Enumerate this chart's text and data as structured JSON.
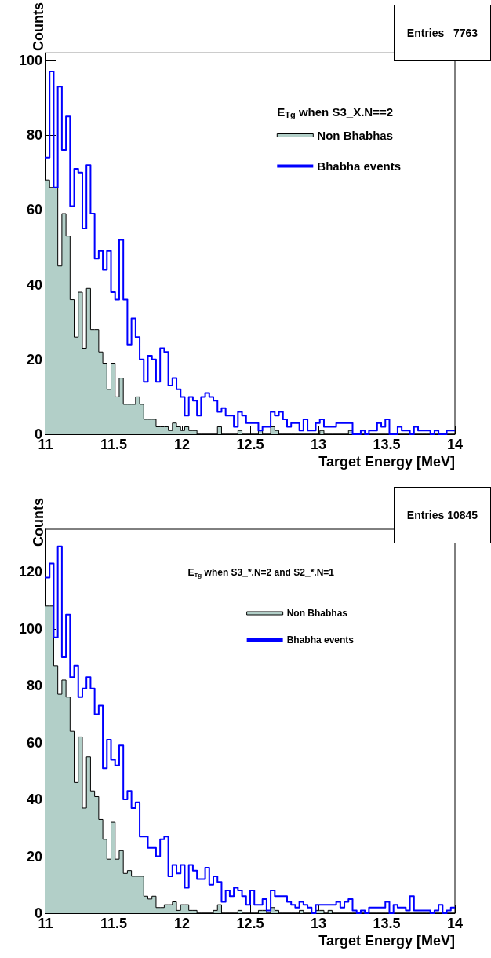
{
  "chart_data": [
    {
      "type": "histogram",
      "xlabel": "Target Energy [MeV]",
      "ylabel": "Counts",
      "legend_title": "E$_{Tg}$ when S3_X.N==2",
      "legend": "top right",
      "annotations": [
        "Entries   7763"
      ],
      "bins": [
        11,
        11.03,
        11.06,
        11.09,
        11.12,
        11.15,
        11.18,
        11.21,
        11.24,
        11.27,
        11.3,
        11.33,
        11.36,
        11.39,
        11.42,
        11.45,
        11.48,
        11.51,
        11.54,
        11.57,
        11.6,
        11.63,
        11.66,
        11.69,
        11.72,
        11.75,
        11.78,
        11.81,
        11.84,
        11.87,
        11.9,
        11.93,
        11.96,
        11.99,
        12.02,
        12.05,
        12.08,
        12.11,
        12.14,
        12.17,
        12.2,
        12.23,
        12.26,
        12.29,
        12.32,
        12.35,
        12.38,
        12.41,
        12.44,
        12.47,
        12.5,
        12.53,
        12.56,
        12.59,
        12.62,
        12.65,
        12.68,
        12.71,
        12.74,
        12.77,
        12.8,
        12.83,
        12.86,
        12.89,
        12.92,
        12.95,
        12.98,
        13.01,
        13.04,
        13.07,
        13.1,
        13.13,
        13.16,
        13.19,
        13.22,
        13.25,
        13.28,
        13.31,
        13.34,
        13.37,
        13.4,
        13.43,
        13.46,
        13.49,
        13.52,
        13.55,
        13.58,
        13.61,
        13.64,
        13.67,
        13.7,
        13.73,
        13.76,
        13.79,
        13.82,
        13.85,
        13.88,
        13.91,
        13.94,
        13.97,
        14
      ],
      "series": [
        {
          "name": "Non Bhabhas",
          "color": "#b2cfc8",
          "values": [
            68,
            66,
            66,
            45,
            59,
            53,
            36,
            26,
            38,
            23,
            39,
            28,
            28,
            22,
            19,
            12,
            19,
            10,
            15,
            8,
            8,
            8,
            10,
            8,
            4,
            4,
            4,
            2,
            2,
            2,
            1,
            3,
            2,
            1,
            2,
            1,
            1,
            0,
            0,
            0,
            0,
            0,
            2,
            0,
            0,
            0,
            0,
            1,
            0,
            0,
            0,
            0,
            1,
            0,
            0,
            2,
            1,
            0,
            0,
            0,
            0,
            0,
            0,
            0,
            0,
            0,
            0,
            1,
            0,
            0,
            0,
            0,
            0,
            0,
            1,
            0,
            0,
            0,
            0,
            0,
            0,
            0,
            0,
            0,
            0,
            0,
            0,
            0,
            0,
            0,
            0,
            0,
            0,
            0,
            0,
            0,
            0,
            0,
            0,
            0
          ]
        },
        {
          "name": "Bhabha events",
          "color": "#0000ff",
          "values": [
            74,
            97,
            66,
            93,
            76,
            85,
            61,
            71,
            70,
            55,
            72,
            59,
            47,
            49,
            44,
            49,
            38,
            36,
            52,
            36,
            24,
            31,
            26,
            20,
            14,
            21,
            20,
            14,
            23,
            22,
            13,
            15,
            12,
            10,
            5,
            10,
            9,
            5,
            10,
            11,
            10,
            9,
            6,
            7,
            5,
            5,
            2,
            6,
            5,
            3,
            3,
            3,
            1,
            2,
            2,
            6,
            5,
            6,
            4,
            2,
            3,
            3,
            1,
            4,
            1,
            1,
            3,
            4,
            2,
            2,
            2,
            3,
            3,
            3,
            3,
            0,
            0,
            1,
            0,
            1,
            1,
            3,
            2,
            4,
            0,
            0,
            2,
            1,
            1,
            0,
            2,
            1,
            1,
            1,
            0,
            1,
            0,
            0,
            1,
            1
          ]
        }
      ],
      "xlim": [
        11,
        14
      ],
      "xticks": [
        11,
        11.5,
        12,
        12.5,
        13,
        13.5,
        14
      ],
      "ylim": [
        0,
        102
      ],
      "yticks": [
        0,
        20,
        40,
        60,
        80,
        100
      ]
    },
    {
      "type": "histogram",
      "xlabel": "Target Energy [MeV]",
      "ylabel": "Counts",
      "legend_title": "E$_{Tg}$ when S3_*.N=2 and S2_*.N=1",
      "legend": "top right",
      "annotations": [
        "Entries 10845"
      ],
      "bins": [
        11,
        11.03,
        11.06,
        11.09,
        11.12,
        11.15,
        11.18,
        11.21,
        11.24,
        11.27,
        11.3,
        11.33,
        11.36,
        11.39,
        11.42,
        11.45,
        11.48,
        11.51,
        11.54,
        11.57,
        11.6,
        11.63,
        11.66,
        11.69,
        11.72,
        11.75,
        11.78,
        11.81,
        11.84,
        11.87,
        11.9,
        11.93,
        11.96,
        11.99,
        12.02,
        12.05,
        12.08,
        12.11,
        12.14,
        12.17,
        12.2,
        12.23,
        12.26,
        12.29,
        12.32,
        12.35,
        12.38,
        12.41,
        12.44,
        12.47,
        12.5,
        12.53,
        12.56,
        12.59,
        12.62,
        12.65,
        12.68,
        12.71,
        12.74,
        12.77,
        12.8,
        12.83,
        12.86,
        12.89,
        12.92,
        12.95,
        12.98,
        13.01,
        13.04,
        13.07,
        13.1,
        13.13,
        13.16,
        13.19,
        13.22,
        13.25,
        13.28,
        13.31,
        13.34,
        13.37,
        13.4,
        13.43,
        13.46,
        13.49,
        13.52,
        13.55,
        13.58,
        13.61,
        13.64,
        13.67,
        13.7,
        13.73,
        13.76,
        13.79,
        13.82,
        13.85,
        13.88,
        13.91,
        13.94,
        13.97,
        14
      ],
      "series": [
        {
          "name": "Non Bhabhas",
          "color": "#b2cfc8",
          "values": [
            108,
            108,
            87,
            77,
            82,
            76,
            64,
            46,
            62,
            37,
            55,
            43,
            41,
            33,
            26,
            19,
            32,
            19,
            22,
            14,
            15,
            13,
            13,
            13,
            6,
            5,
            6,
            2,
            2,
            3,
            3,
            4,
            1,
            3,
            3,
            1,
            1,
            0,
            0,
            0,
            0,
            1,
            3,
            0,
            0,
            0,
            0,
            1,
            0,
            0,
            0,
            0,
            1,
            1,
            0,
            2,
            1,
            0,
            0,
            0,
            0,
            0,
            1,
            0,
            0,
            0,
            1,
            1,
            0,
            1,
            0,
            0,
            0,
            0,
            0,
            0,
            0,
            0,
            0,
            0,
            0,
            0,
            0,
            0,
            0,
            0,
            0,
            0,
            0,
            0,
            0,
            0,
            0,
            0,
            0,
            0,
            0,
            0,
            0,
            0
          ]
        },
        {
          "name": "Bhabha events",
          "color": "#0000ff",
          "values": [
            118,
            123,
            97,
            129,
            90,
            105,
            83,
            87,
            76,
            79,
            83,
            79,
            70,
            73,
            51,
            61,
            54,
            52,
            59,
            40,
            43,
            37,
            39,
            27,
            27,
            23,
            23,
            20,
            26,
            27,
            13,
            17,
            14,
            17,
            9,
            17,
            15,
            12,
            12,
            16,
            10,
            13,
            11,
            4,
            8,
            6,
            9,
            8,
            6,
            3,
            8,
            3,
            3,
            5,
            1,
            8,
            6,
            6,
            6,
            4,
            3,
            2,
            4,
            3,
            2,
            0,
            3,
            3,
            3,
            3,
            3,
            4,
            2,
            4,
            5,
            1,
            0,
            1,
            0,
            2,
            2,
            2,
            2,
            4,
            0,
            3,
            2,
            2,
            1,
            6,
            1,
            1,
            1,
            1,
            0,
            1,
            3,
            0,
            1,
            2
          ]
        }
      ],
      "xlim": [
        11,
        14
      ],
      "xticks": [
        11,
        11.5,
        12,
        12.5,
        13,
        13.5,
        14
      ],
      "ylim": [
        0,
        135
      ],
      "yticks": [
        0,
        20,
        40,
        60,
        80,
        100,
        120
      ]
    }
  ]
}
